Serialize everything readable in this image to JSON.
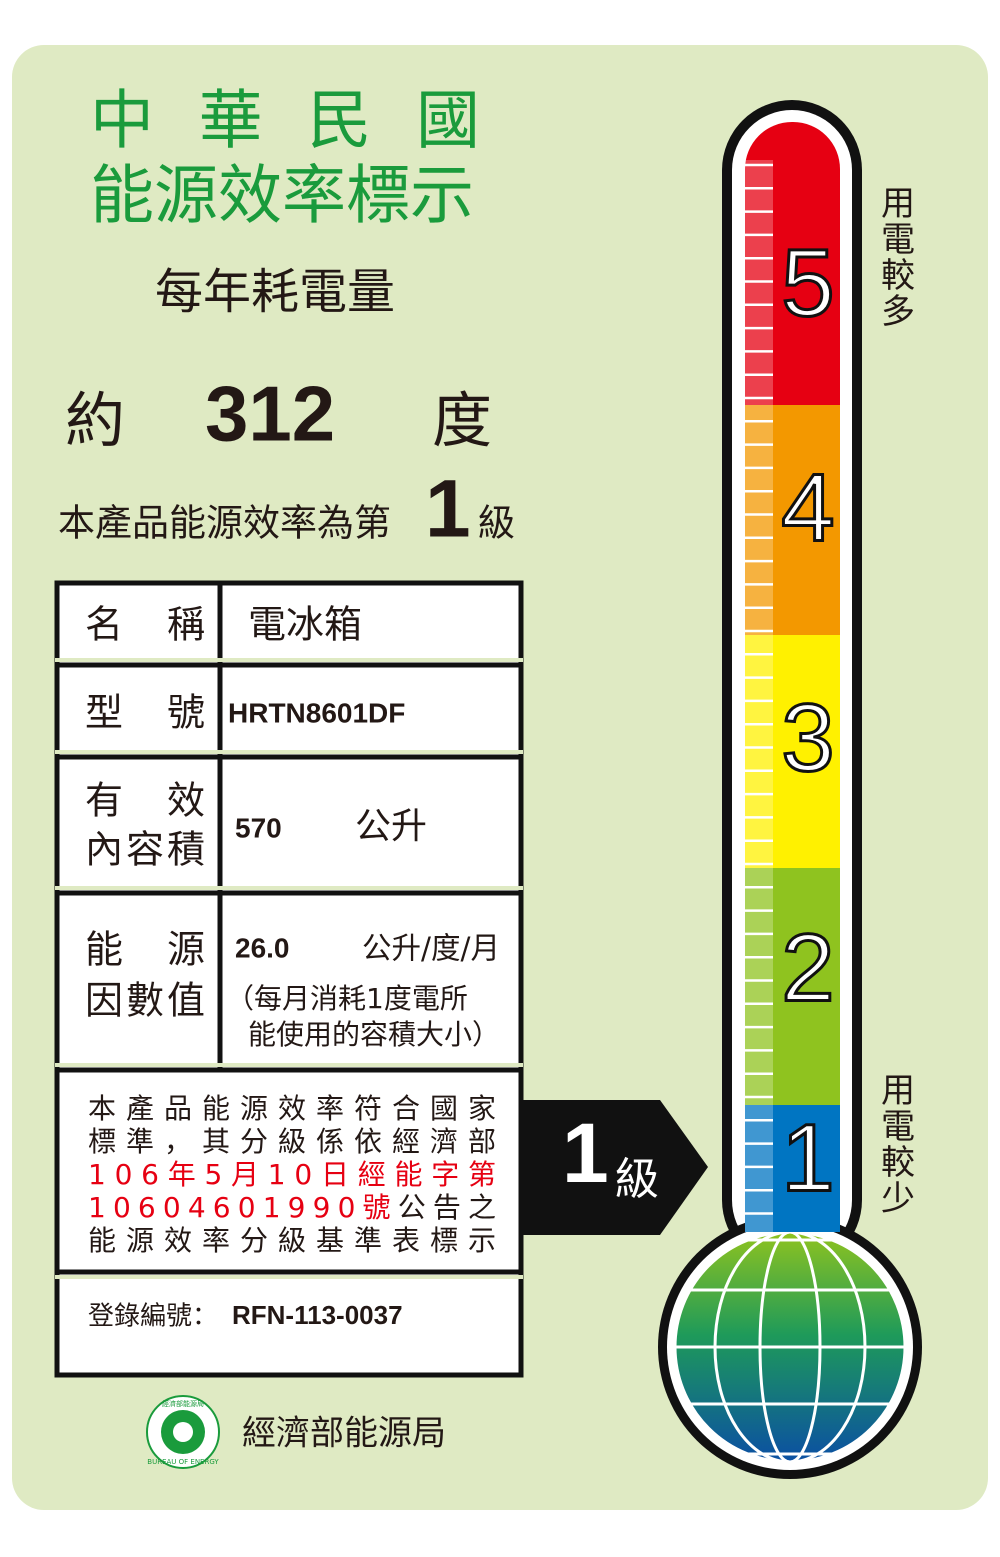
{
  "header": {
    "country": "中華民國",
    "title": "能源效率標示",
    "subtitle": "每年耗電量"
  },
  "consumption": {
    "prefix": "約",
    "value": "312",
    "unit": "度"
  },
  "grade": {
    "prefix": "本產品能源效率為第",
    "level": "1",
    "suffix": "級"
  },
  "table": {
    "rows": [
      {
        "label": [
          "名稱"
        ],
        "value": "電冰箱"
      },
      {
        "label": [
          "型號"
        ],
        "value": "HRTN8601DF"
      },
      {
        "label": [
          "有效",
          "內容積"
        ],
        "value": "570",
        "unit": "公升"
      },
      {
        "label": [
          "能源",
          "因數值"
        ],
        "value": "26.0",
        "unit": "公升/度/月",
        "note": [
          "（每月消耗1度電所",
          "能使用的容積大小）"
        ]
      }
    ]
  },
  "statement": [
    [
      {
        "text": "本產品能源效率符合國家",
        "color": "#231815"
      }
    ],
    [
      {
        "text": "標準，其分級係依經濟部",
        "color": "#231815"
      }
    ],
    [
      {
        "text": "106年5月10日經能字第",
        "color": "#e60012"
      }
    ],
    [
      {
        "text": "10604601990號",
        "color": "#e60012"
      },
      {
        "text": "公告之",
        "color": "#231815"
      }
    ],
    [
      {
        "text": "能源效率分級基準表標示",
        "color": "#231815"
      }
    ]
  ],
  "registration": {
    "label": "登錄編號：",
    "value": "RFN-113-0037"
  },
  "agency": {
    "name": "經濟部能源局",
    "logo_text": [
      "經濟部能源局",
      "BUREAU OF ENERGY"
    ]
  },
  "badge": {
    "level": "1",
    "unit": "級"
  },
  "scale": {
    "levels": [
      {
        "label": "5",
        "color": "#e60012"
      },
      {
        "label": "4",
        "color": "#f39800"
      },
      {
        "label": "3",
        "color": "#fff100"
      },
      {
        "label": "2",
        "color": "#8fc31f"
      },
      {
        "label": "1",
        "color": "#0075c2"
      }
    ],
    "high": "用電較多",
    "low": "用電較少"
  }
}
